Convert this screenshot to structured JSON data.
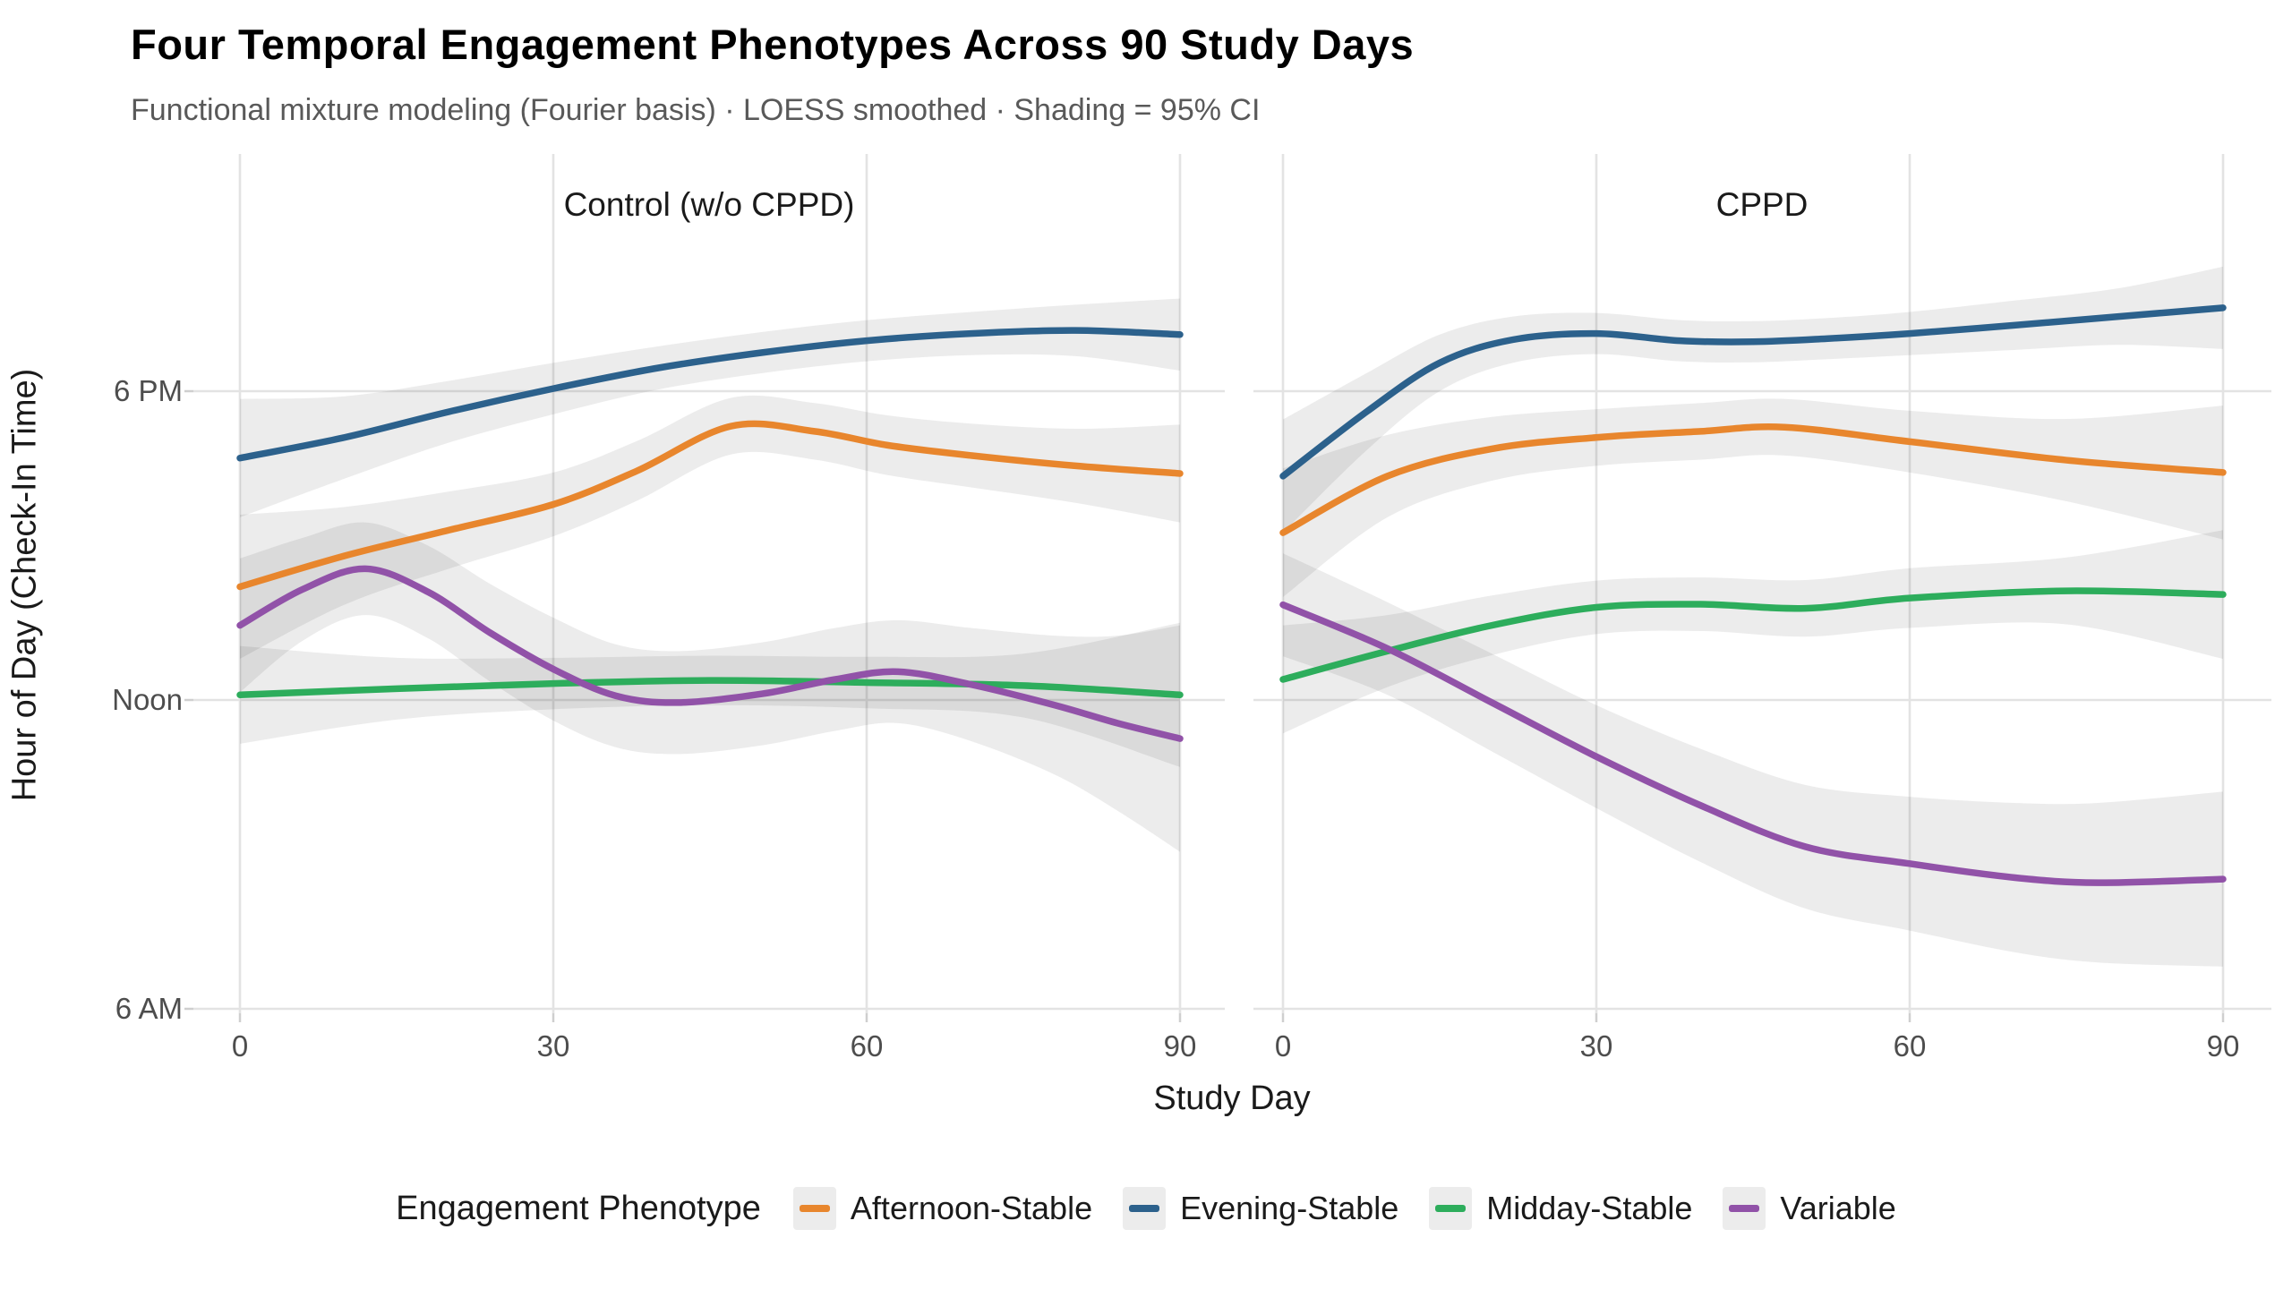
{
  "header": {
    "title": "Four Temporal Engagement Phenotypes Across 90 Study Days",
    "subtitle": "Functional mixture modeling (Fourier basis) · LOESS smoothed · Shading = 95% CI"
  },
  "axes": {
    "x_title": "Study Day",
    "y_title": "Hour of Day (Check-In Time)",
    "x_tick_labels": [
      "0",
      "30",
      "60",
      "90"
    ],
    "x_tick_days": [
      0,
      30,
      60,
      90
    ],
    "y_tick_labels": [
      "6 PM",
      "Noon",
      "6 AM"
    ],
    "y_tick_hours": [
      18,
      12,
      6
    ]
  },
  "panels": [
    {
      "id": "control",
      "label": "Control (w/o CPPD)"
    },
    {
      "id": "cppd",
      "label": "CPPD"
    }
  ],
  "legend": {
    "title": "Engagement Phenotype",
    "items": [
      {
        "key": "afternoon",
        "label": "Afternoon-Stable",
        "color": "#e8862d"
      },
      {
        "key": "evening",
        "label": "Evening-Stable",
        "color": "#2c618c"
      },
      {
        "key": "midday",
        "label": "Midday-Stable",
        "color": "#2dad5c"
      },
      {
        "key": "variable",
        "label": "Variable",
        "color": "#9152a8"
      }
    ]
  },
  "style_colors": {
    "grid_major": "#e3e3e3",
    "tick_mark": "#cfcfcf",
    "ci_band": "rgba(0,0,0,0.075)"
  },
  "chart_data": {
    "type": "line",
    "title": "Four Temporal Engagement Phenotypes Across 90 Study Days",
    "subtitle": "Functional mixture modeling (Fourier basis) · LOESS smoothed · Shading = 95% CI",
    "xlabel": "Study Day",
    "ylabel": "Hour of Day (Check-In Time)",
    "xlim": [
      -4.5,
      94.5
    ],
    "ylim_hours": [
      5.9,
      22.6
    ],
    "x_breaks": [
      0,
      30,
      60,
      90
    ],
    "y_breaks": [
      {
        "hour": 18,
        "label": "6 PM"
      },
      {
        "hour": 12,
        "label": "Noon"
      },
      {
        "hour": 6,
        "label": "6 AM"
      }
    ],
    "grid": "major-only",
    "legend_position": "bottom",
    "note": "points are [study_day, hour_of_day, ci_halfwidth_hours]",
    "facets": [
      {
        "panel": "Control (w/o CPPD)",
        "series": [
          {
            "name": "Afternoon-Stable",
            "key": "afternoon",
            "points": [
              [
                0,
                14.2,
                1.4
              ],
              [
                10,
                14.8,
                0.95
              ],
              [
                20,
                15.3,
                0.75
              ],
              [
                30,
                15.8,
                0.62
              ],
              [
                38,
                16.45,
                0.58
              ],
              [
                47,
                17.32,
                0.55
              ],
              [
                55,
                17.22,
                0.55
              ],
              [
                62,
                16.95,
                0.58
              ],
              [
                70,
                16.75,
                0.62
              ],
              [
                80,
                16.55,
                0.72
              ],
              [
                90,
                16.4,
                0.95
              ]
            ]
          },
          {
            "name": "Evening-Stable",
            "key": "evening",
            "points": [
              [
                0,
                16.7,
                1.15
              ],
              [
                10,
                17.1,
                0.8
              ],
              [
                20,
                17.6,
                0.6
              ],
              [
                30,
                18.05,
                0.5
              ],
              [
                40,
                18.45,
                0.42
              ],
              [
                50,
                18.75,
                0.4
              ],
              [
                60,
                18.98,
                0.4
              ],
              [
                70,
                19.12,
                0.42
              ],
              [
                80,
                19.18,
                0.5
              ],
              [
                90,
                19.1,
                0.7
              ]
            ]
          },
          {
            "name": "Midday-Stable",
            "key": "midday",
            "points": [
              [
                0,
                12.1,
                0.95
              ],
              [
                15,
                12.22,
                0.6
              ],
              [
                30,
                12.32,
                0.5
              ],
              [
                45,
                12.38,
                0.48
              ],
              [
                60,
                12.34,
                0.5
              ],
              [
                75,
                12.28,
                0.62
              ],
              [
                90,
                12.1,
                1.4
              ]
            ]
          },
          {
            "name": "Variable",
            "key": "variable",
            "points": [
              [
                0,
                13.45,
                1.3
              ],
              [
                6,
                14.15,
                1.0
              ],
              [
                12,
                14.55,
                0.9
              ],
              [
                18,
                14.1,
                0.9
              ],
              [
                24,
                13.3,
                0.95
              ],
              [
                30,
                12.6,
                1.0
              ],
              [
                36,
                12.08,
                1.0
              ],
              [
                42,
                11.95,
                1.0
              ],
              [
                50,
                12.12,
                1.0
              ],
              [
                57,
                12.4,
                1.0
              ],
              [
                63,
                12.55,
                1.0
              ],
              [
                70,
                12.3,
                1.1
              ],
              [
                78,
                11.9,
                1.35
              ],
              [
                84,
                11.55,
                1.7
              ],
              [
                90,
                11.25,
                2.2
              ]
            ]
          }
        ]
      },
      {
        "panel": "CPPD",
        "series": [
          {
            "name": "Afternoon-Stable",
            "key": "afternoon",
            "points": [
              [
                0,
                15.25,
                1.25
              ],
              [
                10,
                16.35,
                0.8
              ],
              [
                20,
                16.88,
                0.62
              ],
              [
                30,
                17.1,
                0.55
              ],
              [
                40,
                17.22,
                0.55
              ],
              [
                48,
                17.3,
                0.55
              ],
              [
                60,
                17.02,
                0.6
              ],
              [
                75,
                16.66,
                0.8
              ],
              [
                90,
                16.42,
                1.3
              ]
            ]
          },
          {
            "name": "Evening-Stable",
            "key": "evening",
            "points": [
              [
                0,
                16.35,
                1.1
              ],
              [
                8,
                17.6,
                0.75
              ],
              [
                15,
                18.55,
                0.55
              ],
              [
                22,
                19.0,
                0.45
              ],
              [
                30,
                19.12,
                0.4
              ],
              [
                38,
                18.98,
                0.4
              ],
              [
                45,
                18.96,
                0.4
              ],
              [
                52,
                19.02,
                0.4
              ],
              [
                60,
                19.12,
                0.42
              ],
              [
                70,
                19.28,
                0.48
              ],
              [
                80,
                19.45,
                0.55
              ],
              [
                90,
                19.62,
                0.8
              ]
            ]
          },
          {
            "name": "Midday-Stable",
            "key": "midday",
            "points": [
              [
                0,
                12.4,
                1.05
              ],
              [
                10,
                12.95,
                0.7
              ],
              [
                20,
                13.45,
                0.58
              ],
              [
                30,
                13.8,
                0.52
              ],
              [
                40,
                13.86,
                0.52
              ],
              [
                50,
                13.78,
                0.55
              ],
              [
                60,
                13.98,
                0.58
              ],
              [
                75,
                14.12,
                0.65
              ],
              [
                90,
                14.05,
                1.25
              ]
            ]
          },
          {
            "name": "Variable",
            "key": "variable",
            "points": [
              [
                0,
                13.85,
                1.0
              ],
              [
                10,
                13.0,
                0.9
              ],
              [
                20,
                11.95,
                0.95
              ],
              [
                30,
                10.9,
                1.0
              ],
              [
                40,
                9.95,
                1.1
              ],
              [
                50,
                9.15,
                1.2
              ],
              [
                60,
                8.82,
                1.3
              ],
              [
                70,
                8.55,
                1.45
              ],
              [
                78,
                8.45,
                1.55
              ],
              [
                90,
                8.52,
                1.7
              ]
            ]
          }
        ]
      }
    ]
  }
}
